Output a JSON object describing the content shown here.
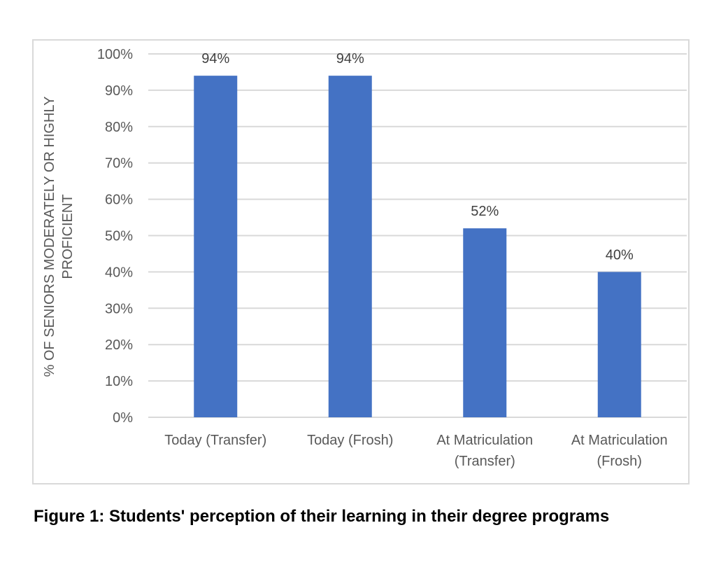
{
  "chart_data": {
    "type": "bar",
    "categories": [
      "Today (Transfer)",
      "Today (Frosh)",
      "At Matriculation (Transfer)",
      "At Matriculation (Frosh)"
    ],
    "category_lines": [
      [
        "Today (Transfer)"
      ],
      [
        "Today (Frosh)"
      ],
      [
        "At Matriculation",
        "(Transfer)"
      ],
      [
        "At Matriculation",
        "(Frosh)"
      ]
    ],
    "values": [
      94,
      94,
      52,
      40
    ],
    "data_labels": [
      "94%",
      "94%",
      "52%",
      "40%"
    ],
    "title": "",
    "xlabel": "",
    "ylabel": "% OF SENIORS MODERATELY OR HIGHLY PROFICIENT",
    "ylim": [
      0,
      100
    ],
    "yticks": [
      "0%",
      "10%",
      "20%",
      "30%",
      "40%",
      "50%",
      "60%",
      "70%",
      "80%",
      "90%",
      "100%"
    ],
    "grid": true,
    "legend": "none",
    "bar_color": "#4472C4",
    "grid_color": "#d9d9d9"
  },
  "caption": "Figure 1: Students' perception of their learning in their degree programs"
}
